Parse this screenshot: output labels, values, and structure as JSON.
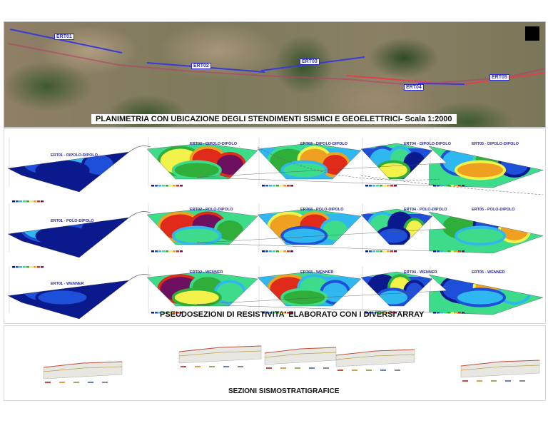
{
  "map": {
    "title": "PLANIMETRIA CON UBICAZIONE DEGLI STENDIMENTI SISMICI E GEOELETTRICI- Scala 1:2000",
    "lines": [
      "ERT01",
      "ERT02",
      "ERT03",
      "ERT04",
      "ERT05"
    ],
    "line_color": "#3a3ad8",
    "seismic_color": "#e04050"
  },
  "resistivity": {
    "caption": "PSEUDOSEZIONI DI RESISTIVITA' ELABORATO CON I DIVERSI ARRAY",
    "rows": [
      {
        "array": "DIPOLO-DIPOLO",
        "labels": [
          "ERT01 - DIPOLO-DIPOLO",
          "ERT02 - DIPOLO-DIPOLO",
          "ERT03 - DIPOLO-DIPOLO",
          "ERT04 - DIPOLO-DIPOLO",
          "ERT05 - DIPOLO-DIPOLO"
        ]
      },
      {
        "array": "POLO-DIPOLO",
        "labels": [
          "ERT01 - POLO-DIPOLO",
          "ERT02 - POLO-DIPOLO",
          "ERT03 - POLO-DIPOLO",
          "ERT04 - POLO-DIPOLO",
          "ERT05 - POLO-DIPOLO"
        ]
      },
      {
        "array": "WENNER",
        "labels": [
          "ERT01 - WENNER",
          "ERT02 - WENNER",
          "ERT03 - WENNER",
          "ERT04 - WENNER",
          "ERT05 - WENNER"
        ]
      }
    ],
    "color_scale": [
      "#0a1a8c",
      "#1e4fd8",
      "#2fb7f0",
      "#3ddc8a",
      "#2fae3a",
      "#f2f24a",
      "#f0a020",
      "#e02a1a",
      "#6e1060"
    ]
  },
  "seismic": {
    "caption": "SEZIONI SISMOSTRATIGRAFICE"
  }
}
